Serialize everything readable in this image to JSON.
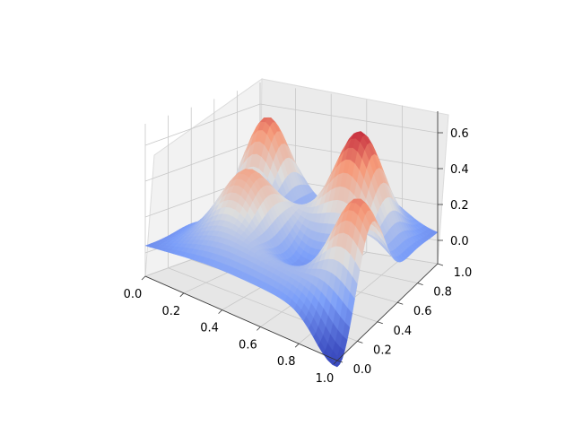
{
  "chart_data": {
    "type": "surface3d",
    "title": "",
    "xlabel": "",
    "ylabel": "",
    "zlabel": "",
    "colormap": "coolwarm",
    "xlim": [
      0.0,
      1.0
    ],
    "ylim": [
      0.0,
      1.0
    ],
    "zlim": [
      -0.13,
      0.72
    ],
    "x_ticks": [
      "0.0",
      "0.2",
      "0.4",
      "0.6",
      "0.8",
      "1.0"
    ],
    "y_ticks": [
      "0.0",
      "0.2",
      "0.4",
      "0.6",
      "0.8",
      "1.0"
    ],
    "z_ticks": [
      "0.0",
      "0.2",
      "0.4",
      "0.6"
    ],
    "grid": true,
    "z_values_5x5": [
      [
        -0.04,
        0.22,
        0.52,
        0.3,
        0.05
      ],
      [
        0.12,
        0.35,
        0.28,
        0.46,
        0.2
      ],
      [
        0.18,
        0.42,
        0.22,
        0.3,
        0.58
      ],
      [
        0.02,
        0.1,
        0.05,
        0.08,
        -0.02
      ],
      [
        -0.06,
        0.0,
        -0.02,
        0.0,
        -0.08
      ]
    ]
  }
}
